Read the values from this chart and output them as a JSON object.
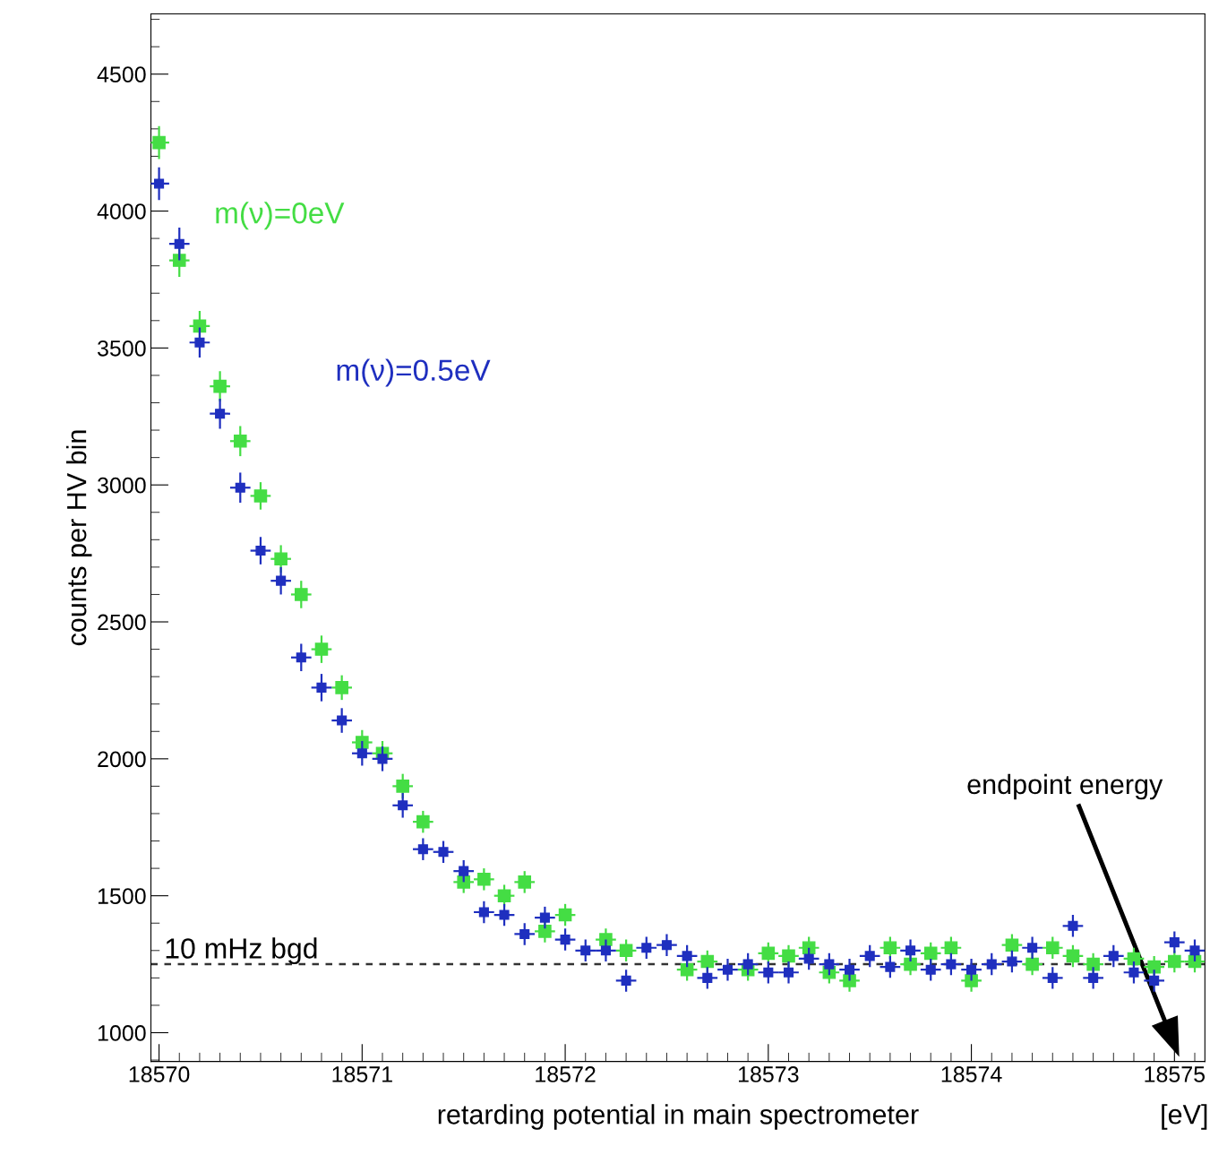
{
  "chart_data": {
    "type": "scatter",
    "xlabel": "retarding potential in main spectrometer",
    "ylabel": "counts per HV bin",
    "x": [
      18570.0,
      18570.1,
      18570.2,
      18570.3,
      18570.4,
      18570.5,
      18570.6,
      18570.7,
      18570.8,
      18570.9,
      18571.0,
      18571.1,
      18571.2,
      18571.3,
      18571.4,
      18571.5,
      18571.6,
      18571.7,
      18571.8,
      18571.9,
      18572.0,
      18572.1,
      18572.2,
      18572.3,
      18572.4,
      18572.5,
      18572.6,
      18572.7,
      18572.8,
      18572.9,
      18573.0,
      18573.1,
      18573.2,
      18573.3,
      18573.4,
      18573.5,
      18573.6,
      18573.7,
      18573.8,
      18573.9,
      18574.0,
      18574.1,
      18574.2,
      18574.3,
      18574.4,
      18574.5,
      18574.6,
      18574.7,
      18574.8,
      18574.9,
      18575.0,
      18575.1
    ],
    "series": [
      {
        "name": "m(ν)=0eV",
        "color": "#44dd44",
        "values": [
          4250,
          3820,
          3580,
          3360,
          3160,
          2960,
          2730,
          2600,
          2400,
          2260,
          2060,
          2020,
          1900,
          1770,
          null,
          1550,
          1560,
          1500,
          1550,
          1370,
          1430,
          null,
          1340,
          1300,
          null,
          null,
          1230,
          1260,
          null,
          1230,
          1290,
          1280,
          1310,
          1220,
          1190,
          null,
          1310,
          1250,
          1290,
          1310,
          1190,
          null,
          1320,
          1250,
          1310,
          1280,
          1250,
          null,
          1270,
          1240,
          1260,
          1260
        ],
        "errors": [
          60,
          60,
          55,
          55,
          55,
          50,
          50,
          50,
          50,
          45,
          45,
          45,
          45,
          40,
          null,
          40,
          40,
          40,
          40,
          40,
          40,
          null,
          40,
          40,
          null,
          null,
          40,
          40,
          null,
          40,
          40,
          40,
          40,
          40,
          40,
          null,
          40,
          40,
          40,
          40,
          40,
          null,
          40,
          40,
          40,
          40,
          40,
          null,
          40,
          40,
          40,
          40
        ],
        "xerrors": [
          0.05,
          0.05,
          0.05,
          0.05,
          0.05,
          0.05,
          0.05,
          0.05,
          0.05,
          0.05,
          0.05,
          0.05,
          0.05,
          0.05,
          null,
          0.05,
          0.05,
          0.05,
          0.05,
          0.05,
          0.05,
          null,
          0.05,
          0.05,
          null,
          null,
          0.05,
          0.05,
          null,
          0.05,
          0.05,
          0.05,
          0.05,
          0.05,
          0.05,
          null,
          0.05,
          0.05,
          0.05,
          0.05,
          0.05,
          null,
          0.05,
          0.05,
          0.05,
          0.05,
          0.05,
          null,
          0.05,
          0.05,
          0.05,
          0.05
        ]
      },
      {
        "name": "m(ν)=0.5eV",
        "color": "#1f2fbf",
        "values": [
          4100,
          3880,
          3520,
          3260,
          2990,
          2760,
          2650,
          2370,
          2260,
          2140,
          2020,
          2000,
          1830,
          1670,
          1660,
          1590,
          1440,
          1430,
          1360,
          1420,
          1340,
          1300,
          1300,
          1190,
          1310,
          1320,
          1280,
          1200,
          1230,
          1250,
          1220,
          1220,
          1270,
          1250,
          1230,
          1280,
          1240,
          1300,
          1230,
          1250,
          1230,
          1250,
          1260,
          1310,
          1200,
          1390,
          1200,
          1280,
          1220,
          1190,
          1330,
          1300
        ],
        "errors": [
          60,
          60,
          55,
          55,
          55,
          50,
          50,
          50,
          50,
          45,
          45,
          45,
          45,
          40,
          40,
          40,
          40,
          40,
          40,
          40,
          40,
          40,
          40,
          40,
          40,
          40,
          40,
          40,
          40,
          40,
          40,
          40,
          40,
          40,
          40,
          40,
          40,
          40,
          40,
          40,
          40,
          40,
          40,
          40,
          40,
          40,
          40,
          40,
          40,
          40,
          40,
          40
        ],
        "xerrors": [
          0.05,
          0.05,
          0.05,
          0.05,
          0.05,
          0.05,
          0.05,
          0.05,
          0.05,
          0.05,
          0.05,
          0.05,
          0.05,
          0.05,
          0.05,
          0.05,
          0.05,
          0.05,
          0.05,
          0.05,
          0.05,
          0.05,
          0.05,
          0.05,
          0.05,
          0.05,
          0.05,
          0.05,
          0.05,
          0.05,
          0.05,
          0.05,
          0.05,
          0.05,
          0.05,
          0.05,
          0.05,
          0.05,
          0.05,
          0.05,
          0.05,
          0.05,
          0.05,
          0.05,
          0.05,
          0.05,
          0.05,
          0.05,
          0.05,
          0.05,
          0.05,
          0.05
        ]
      }
    ],
    "xlim": [
      18569.96,
      18575.15
    ],
    "ylim": [
      895,
      4720
    ],
    "xticks": [
      18570,
      18571,
      18572,
      18573,
      18574,
      18575
    ],
    "yticks": [
      1000,
      1500,
      2000,
      2500,
      3000,
      3500,
      4000,
      4500
    ],
    "ref_lines": [
      {
        "axis": "y",
        "value": 1250,
        "label": "10 mHz bgd",
        "color": "#333333",
        "line_style": "dashed"
      }
    ],
    "annotations": [
      "[eV]",
      "endpoint energy"
    ],
    "marker": "square",
    "grid": false,
    "legend": false
  }
}
